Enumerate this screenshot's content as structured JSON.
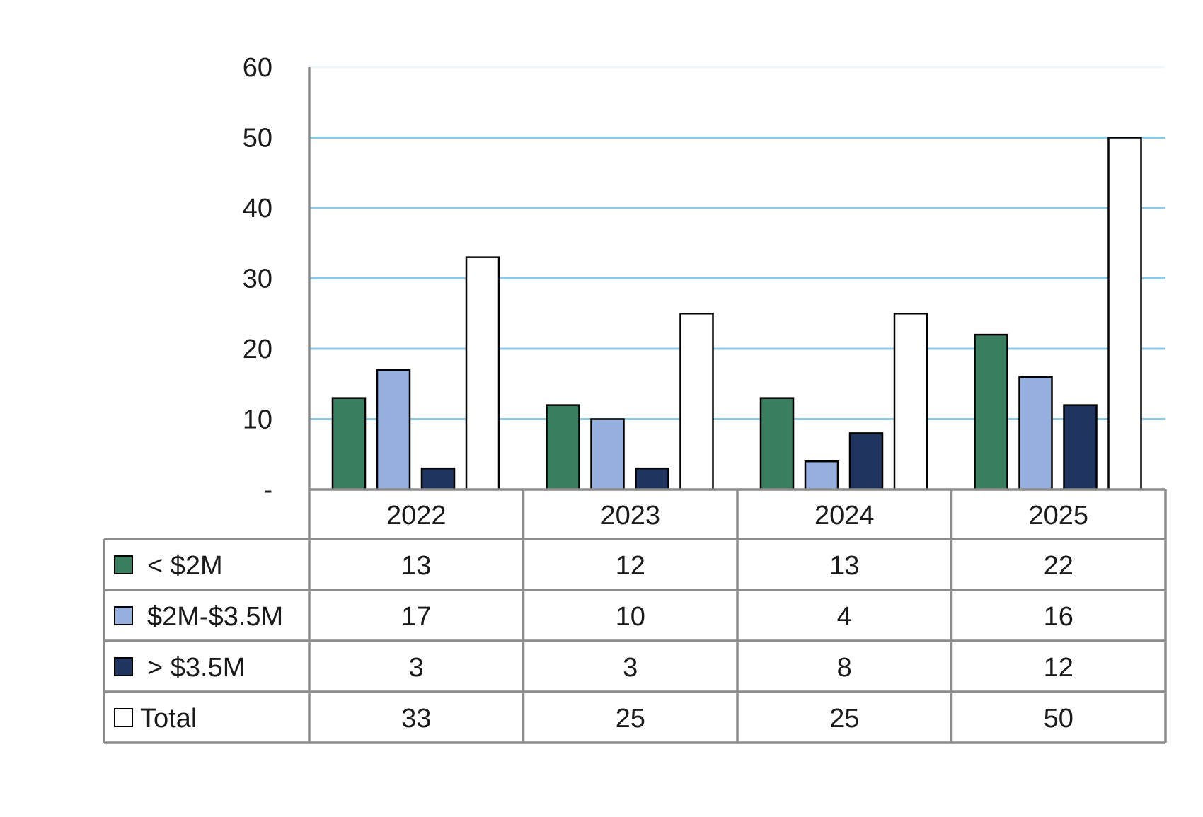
{
  "chart_data": {
    "type": "bar",
    "categories": [
      "2022",
      "2023",
      "2024",
      "2025"
    ],
    "series": [
      {
        "name": "< $2M",
        "values": [
          13,
          12,
          13,
          22
        ],
        "color": "#3a7d5f"
      },
      {
        "name": "$2M-$3.5M",
        "values": [
          17,
          10,
          4,
          16
        ],
        "color": "#95b0df"
      },
      {
        "name": "> $3.5M",
        "values": [
          3,
          3,
          8,
          12
        ],
        "color": "#1f3560"
      },
      {
        "name": "Total",
        "values": [
          33,
          25,
          25,
          50
        ],
        "color": "#ffffff"
      }
    ],
    "ylim": [
      0,
      60
    ],
    "yticks": [
      0,
      10,
      20,
      30,
      40,
      50,
      60
    ],
    "ytick_labels": [
      "-",
      "10",
      "20",
      "30",
      "40",
      "50",
      "60"
    ],
    "grid": true,
    "gridline_color": "#7fc4e6",
    "legend": "data-table-below"
  }
}
